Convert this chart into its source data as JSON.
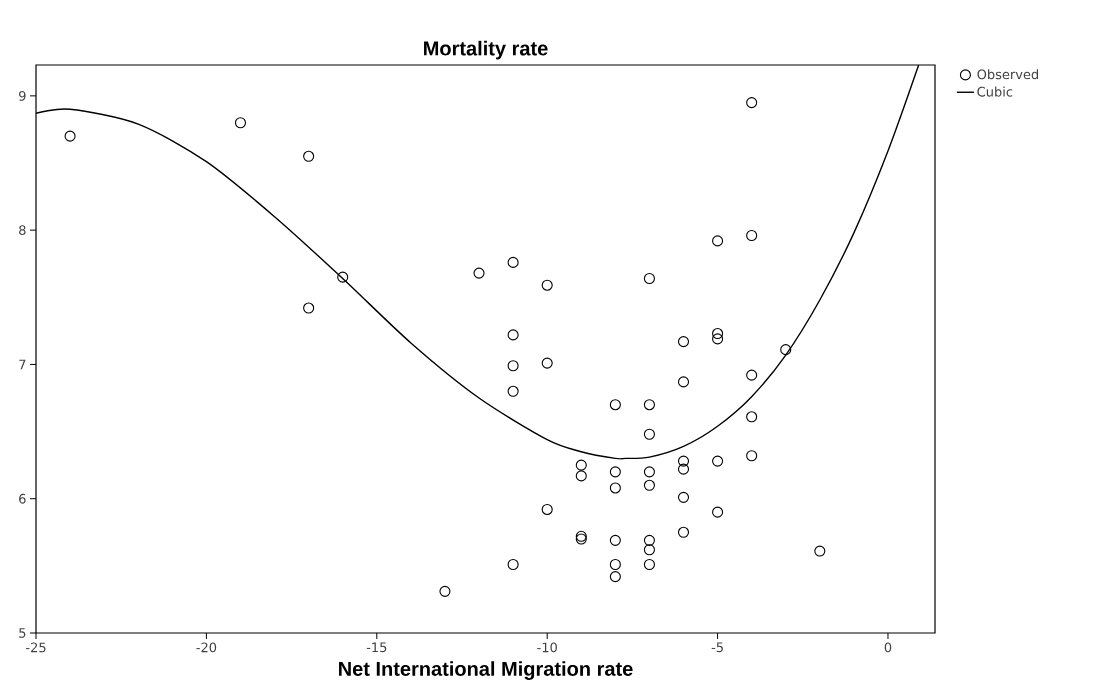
{
  "chart_data": {
    "type": "scatter",
    "title": "Mortality rate",
    "xlabel": "Net International Migration rate",
    "xlim": [
      -25,
      1.38
    ],
    "ylim": [
      5,
      9.23
    ],
    "xticks": [
      -25,
      -20,
      -15,
      -10,
      -5,
      0
    ],
    "yticks": [
      5,
      6,
      7,
      8,
      9
    ],
    "grid": false,
    "legend": "top right",
    "series": [
      {
        "name": "Observed",
        "marker": "circle",
        "color": "#000000",
        "x": [
          -24,
          -19,
          -17,
          -17,
          -16,
          -12,
          -11,
          -11,
          -11,
          -11,
          -11,
          -10,
          -10,
          -10,
          -13,
          -9,
          -9,
          -9,
          -9,
          -8,
          -8,
          -8,
          -8,
          -8,
          -8,
          -7,
          -7,
          -7,
          -7,
          -7,
          -7,
          -7,
          -7,
          -6,
          -6,
          -6,
          -6,
          -6,
          -6,
          -5,
          -5,
          -5,
          -5,
          -5,
          -4,
          -4,
          -4,
          -4,
          -4,
          -3,
          -2
        ],
        "values": [
          8.7,
          8.8,
          8.55,
          7.42,
          7.65,
          7.68,
          7.76,
          7.22,
          6.99,
          6.8,
          5.51,
          7.59,
          7.01,
          5.92,
          5.31,
          6.25,
          6.17,
          5.72,
          5.7,
          6.7,
          6.2,
          6.08,
          5.69,
          5.51,
          5.42,
          7.64,
          6.7,
          6.48,
          6.2,
          6.1,
          5.69,
          5.62,
          5.51,
          7.17,
          6.87,
          6.28,
          6.22,
          6.01,
          5.75,
          7.92,
          7.23,
          7.19,
          6.28,
          5.9,
          8.95,
          7.96,
          6.92,
          6.61,
          6.32,
          7.11,
          5.61
        ]
      },
      {
        "name": "Cubic",
        "type": "line",
        "marker": "none",
        "color": "#000000",
        "line_style": "solid",
        "x": [
          -25,
          -24,
          -22,
          -20,
          -18,
          -16,
          -14,
          -12,
          -10,
          -9,
          -8,
          -7.7,
          -7,
          -6,
          -5,
          -4,
          -3,
          -2,
          -1,
          0,
          0.9
        ],
        "values": [
          8.87,
          8.9,
          8.79,
          8.51,
          8.1,
          7.64,
          7.16,
          6.75,
          6.44,
          6.35,
          6.3,
          6.3,
          6.31,
          6.39,
          6.54,
          6.76,
          7.07,
          7.48,
          7.98,
          8.59,
          9.23
        ]
      }
    ]
  }
}
